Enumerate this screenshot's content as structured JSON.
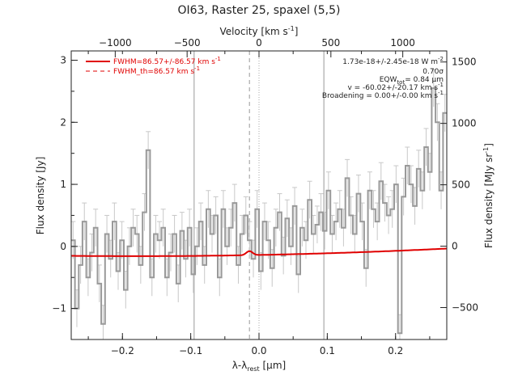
{
  "chart_data": {
    "type": "line",
    "title": "OI63, Raster 25, spaxel (5,5)",
    "xlabel": "λ-λ",
    "xlabel_sub": "rest",
    "xlabel_unit": " [μm]",
    "ylabel": "Flux density [Jy]",
    "y2label": "Flux density [MJy sr",
    "y2label_sup": "-1",
    "x2label": "Velocity [km s",
    "x2label_sup": "-1",
    "xlim": [
      -0.275,
      0.275
    ],
    "ylim": [
      -1.5,
      3.15
    ],
    "y2lim": [
      -760,
      1590
    ],
    "x2lim": [
      -1306,
      1306
    ],
    "xticks": [
      -0.2,
      -0.1,
      0.0,
      0.1,
      0.2
    ],
    "xtick_labels": [
      "−0.2",
      "−0.1",
      "0.0",
      "0.1",
      "0.2"
    ],
    "yticks": [
      -1,
      0,
      1,
      2,
      3
    ],
    "ytick_labels": [
      "−1",
      "0",
      "1",
      "2",
      "3"
    ],
    "y2ticks": [
      -500,
      0,
      500,
      1000,
      1500
    ],
    "y2tick_labels": [
      "−500",
      "0",
      "500",
      "1000",
      "1500"
    ],
    "x2ticks": [
      -1000,
      -500,
      0,
      500,
      1000
    ],
    "x2tick_labels": [
      "−1000",
      "−500",
      "0",
      "500",
      "1000"
    ],
    "vlines_solid": [
      -0.095,
      0.095
    ],
    "vline_dashed": -0.014,
    "vline_dotted": 0.0,
    "legend": [
      {
        "label": "FWHM=86.57+/-86.57 km s",
        "sup": "-1",
        "style": "solid"
      },
      {
        "label": "FWHM_th=86.57 km s",
        "sup": "-1",
        "style": "dashed"
      }
    ],
    "annotations": [
      "1.73e-18+/-2.45e-18 W m",
      "0.70σ",
      "EQW",
      "= 0.84 μm",
      "v = -60.02+/-20.17 km s",
      "Broadening = 0.00+/-0.00 km s"
    ],
    "annotation_parts": {
      "flux_sup": "-2",
      "eqw_sub": "tot",
      "v_sup": "-1",
      "b_sup": "-1"
    },
    "spectrum": {
      "name": "data",
      "color": "#999999",
      "x": [
        -0.275,
        -0.2695,
        -0.264,
        -0.2585,
        -0.253,
        -0.2475,
        -0.242,
        -0.2365,
        -0.231,
        -0.2255,
        -0.22,
        -0.2145,
        -0.209,
        -0.2035,
        -0.198,
        -0.1925,
        -0.187,
        -0.1815,
        -0.176,
        -0.1705,
        -0.165,
        -0.1595,
        -0.154,
        -0.1485,
        -0.143,
        -0.1375,
        -0.132,
        -0.1265,
        -0.121,
        -0.1155,
        -0.11,
        -0.1045,
        -0.099,
        -0.0935,
        -0.088,
        -0.0825,
        -0.077,
        -0.0715,
        -0.066,
        -0.0605,
        -0.055,
        -0.0495,
        -0.044,
        -0.0385,
        -0.033,
        -0.0275,
        -0.022,
        -0.0165,
        -0.011,
        -0.0055,
        0.0,
        0.0055,
        0.011,
        0.0165,
        0.022,
        0.0275,
        0.033,
        0.0385,
        0.044,
        0.0495,
        0.055,
        0.0605,
        0.066,
        0.0715,
        0.077,
        0.0825,
        0.088,
        0.0935,
        0.099,
        0.1045,
        0.11,
        0.1155,
        0.121,
        0.1265,
        0.132,
        0.1375,
        0.143,
        0.1485,
        0.154,
        0.1595,
        0.165,
        0.1705,
        0.176,
        0.1815,
        0.187,
        0.1925,
        0.198,
        0.2035,
        0.209,
        0.2145,
        0.22,
        0.2255,
        0.231,
        0.2365,
        0.242,
        0.2475,
        0.253,
        0.2585,
        0.264,
        0.2695
      ],
      "y": [
        0.1,
        -1.0,
        -0.3,
        0.4,
        -0.5,
        -0.1,
        0.3,
        -0.6,
        -1.25,
        0.2,
        -0.2,
        0.4,
        -0.4,
        0.1,
        -0.7,
        0.0,
        0.3,
        0.2,
        -0.3,
        0.55,
        1.55,
        -0.5,
        0.2,
        0.1,
        0.3,
        -0.5,
        -0.1,
        0.2,
        -0.6,
        0.25,
        -0.2,
        0.3,
        -0.45,
        0.0,
        0.4,
        -0.3,
        0.6,
        0.2,
        0.5,
        -0.5,
        0.6,
        0.0,
        0.3,
        0.7,
        -0.3,
        0.2,
        0.5,
        0.1,
        -0.2,
        0.6,
        -0.4,
        0.4,
        0.1,
        -0.35,
        0.3,
        0.55,
        -0.15,
        0.45,
        0.0,
        0.65,
        -0.45,
        0.3,
        0.1,
        0.75,
        0.2,
        0.35,
        0.55,
        0.25,
        0.9,
        0.2,
        0.4,
        0.6,
        0.3,
        1.1,
        0.5,
        0.2,
        0.85,
        0.4,
        -0.35,
        0.9,
        0.6,
        0.4,
        1.05,
        0.7,
        0.5,
        0.6,
        1.0,
        -1.4,
        0.8,
        1.3,
        1.0,
        0.65,
        1.25,
        0.9,
        1.6,
        1.2,
        2.55,
        2.0,
        0.9,
        2.15
      ],
      "err": 0.3
    },
    "fit": {
      "name": "fit",
      "color": "#e00000",
      "baseline": {
        "a": -0.1571,
        "b": 0.5929,
        "c": 11.6
      },
      "gaussian": {
        "amp": 0.065,
        "center": -0.014,
        "sigma": 0.0045
      }
    }
  }
}
